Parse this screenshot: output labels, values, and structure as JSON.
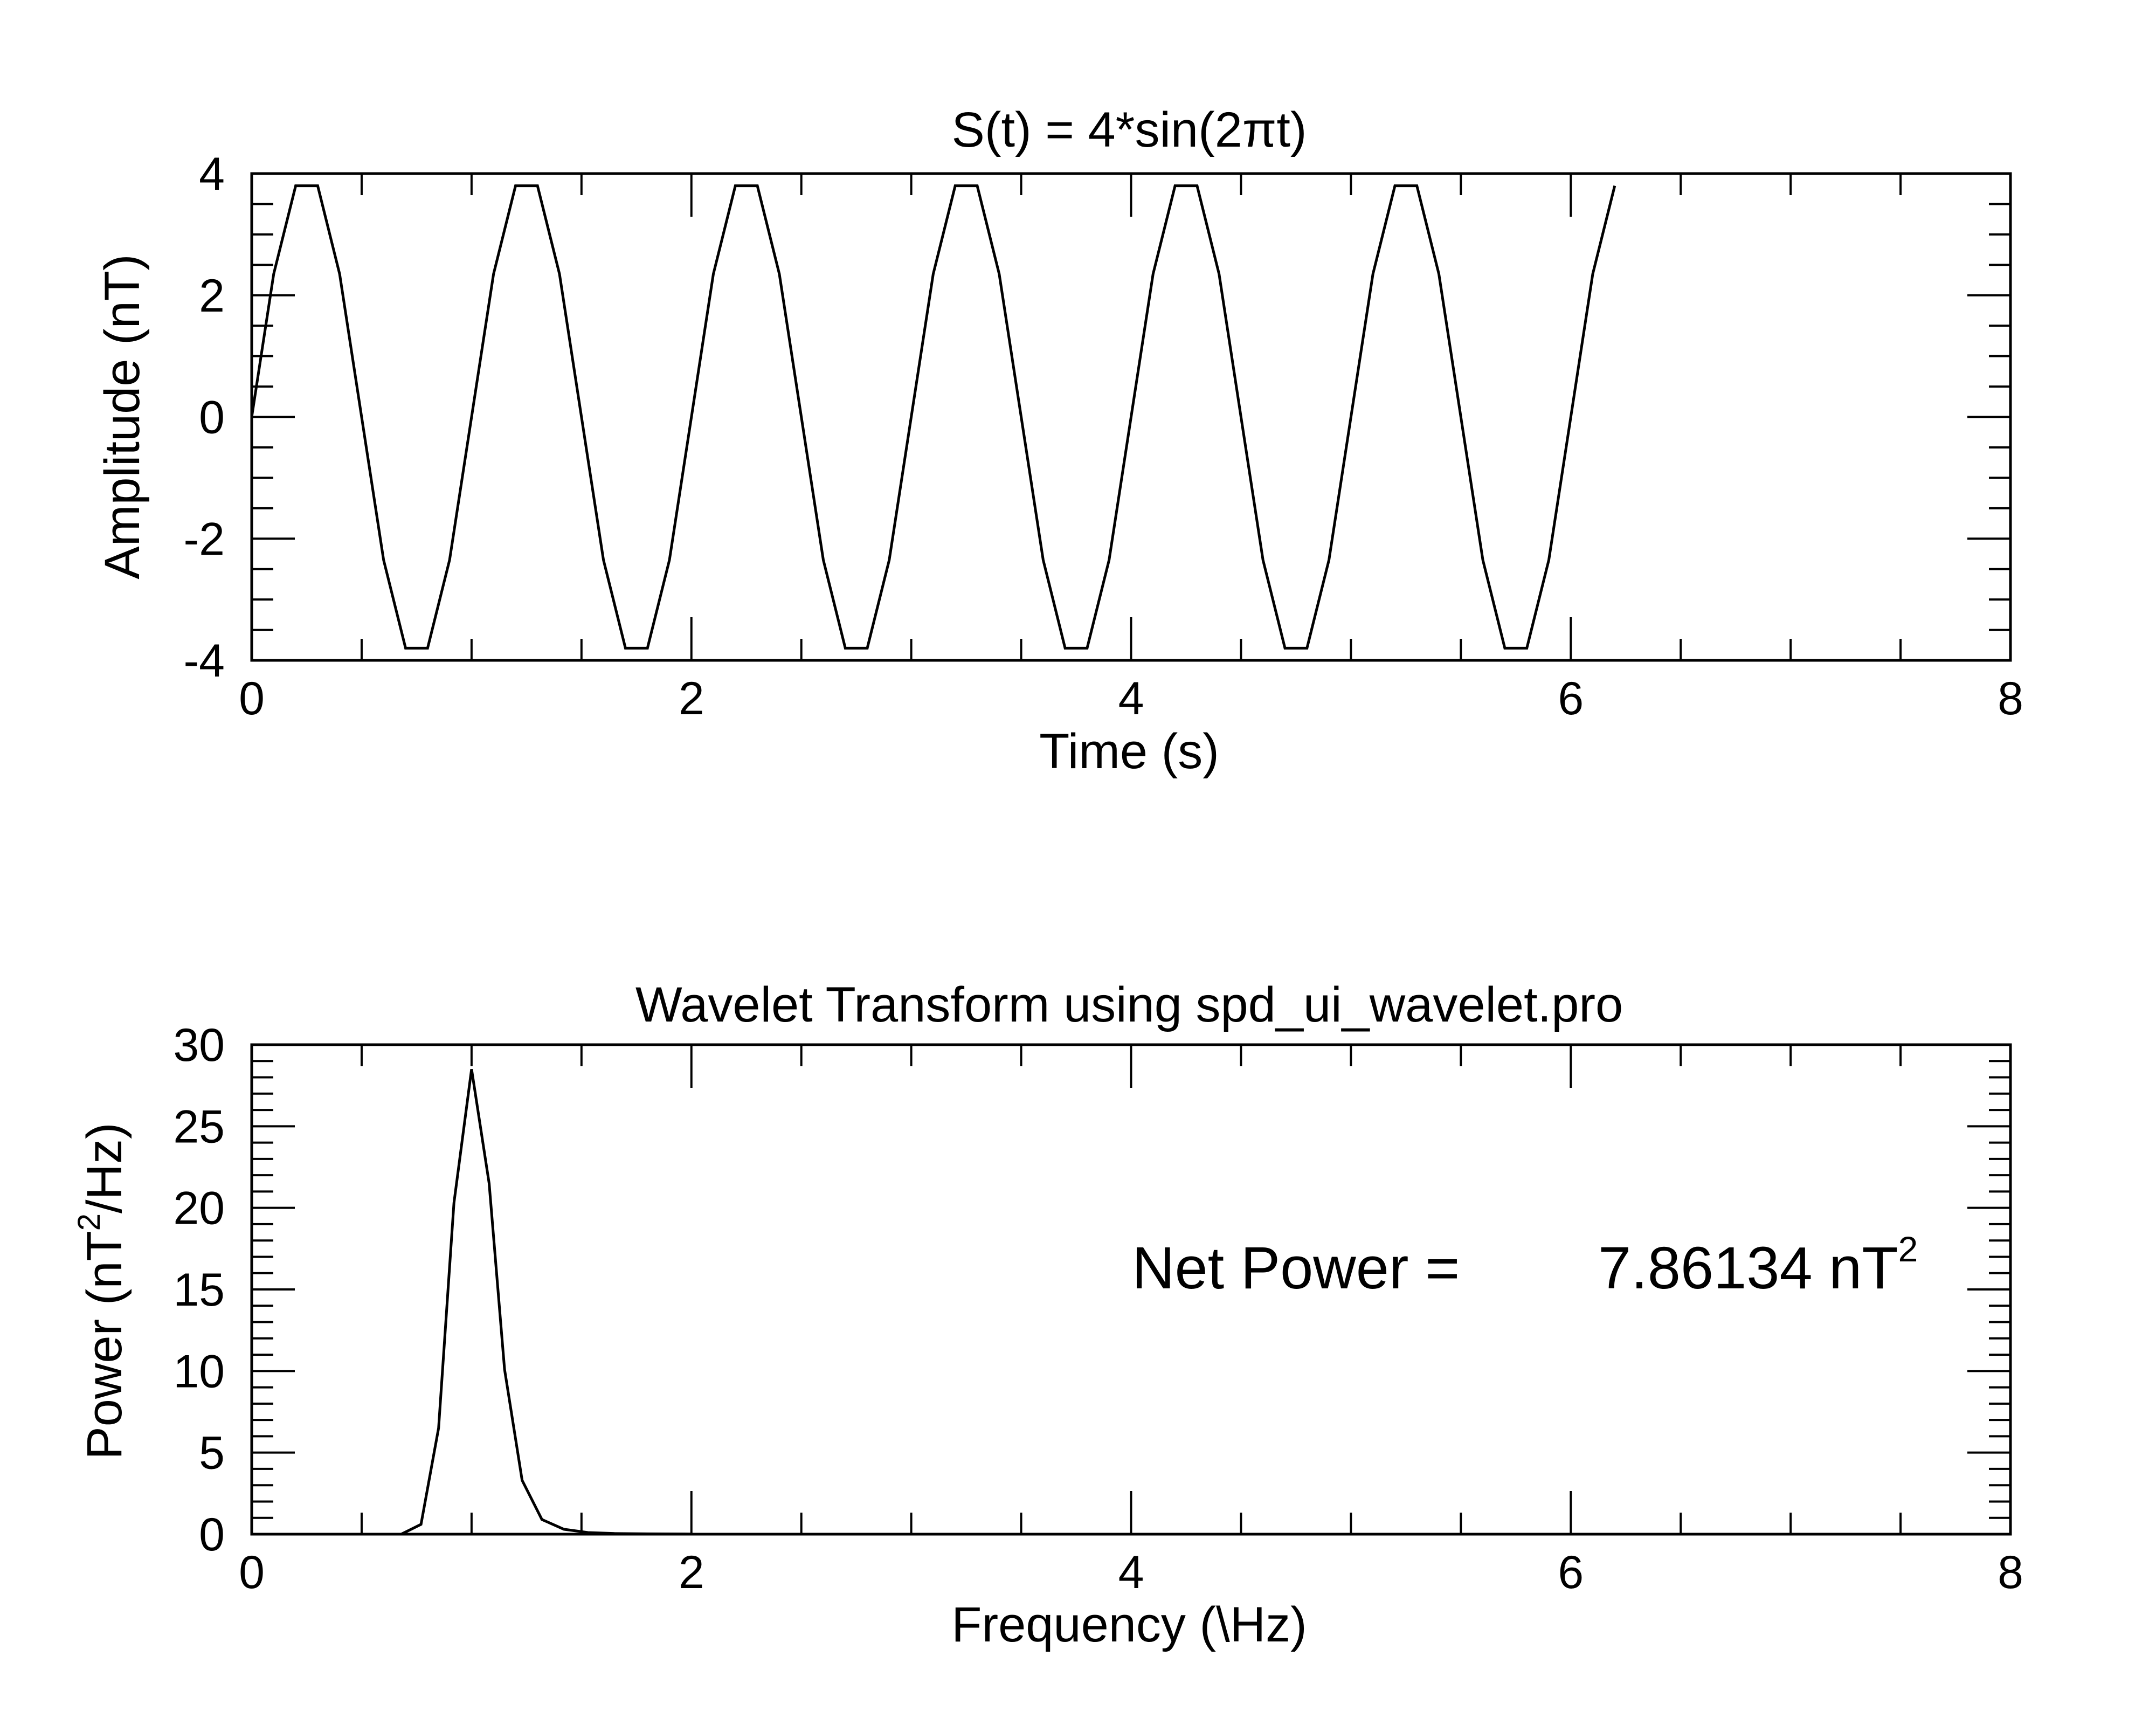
{
  "chart_data": [
    {
      "type": "line",
      "title": "S(t) = 4*sin(2πt)",
      "xlabel": "Time (s)",
      "ylabel": "Amplitude (nT)",
      "xlim": [
        0,
        8
      ],
      "ylim": [
        -4,
        4
      ],
      "x_ticks": [
        "0",
        "2",
        "4",
        "6",
        "8"
      ],
      "y_ticks": [
        "-4",
        "-2",
        "0",
        "2",
        "4"
      ],
      "grid": false,
      "series": [
        {
          "amplitude": 4,
          "frequency_hz": 1,
          "sample_step_s": 0.1,
          "x": [
            0,
            0.1,
            0.2,
            0.3,
            0.4,
            0.5,
            0.6,
            0.7,
            0.8,
            0.9,
            1.0,
            1.1,
            1.2,
            1.3,
            1.4,
            1.5,
            1.6,
            1.7,
            1.8,
            1.9,
            2.0,
            2.1,
            2.2,
            2.3,
            2.4,
            2.5,
            2.6,
            2.7,
            2.8,
            2.9,
            3.0,
            3.1,
            3.2,
            3.3,
            3.4,
            3.5,
            3.6,
            3.7,
            3.8,
            3.9,
            4.0,
            4.1,
            4.2,
            4.3,
            4.4,
            4.5,
            4.6,
            4.7,
            4.8,
            4.9,
            5.0,
            5.1,
            5.2,
            5.3,
            5.4,
            5.5,
            5.6,
            5.7,
            5.8,
            5.9,
            6.0,
            6.1,
            6.2
          ],
          "y": [
            0,
            2.35,
            3.8,
            3.8,
            2.35,
            0,
            -2.35,
            -3.8,
            -3.8,
            -2.35,
            0,
            2.35,
            3.8,
            3.8,
            2.35,
            0,
            -2.35,
            -3.8,
            -3.8,
            -2.35,
            0,
            2.35,
            3.8,
            3.8,
            2.35,
            0,
            -2.35,
            -3.8,
            -3.8,
            -2.35,
            0,
            2.35,
            3.8,
            3.8,
            2.35,
            0,
            -2.35,
            -3.8,
            -3.8,
            -2.35,
            0,
            2.35,
            3.8,
            3.8,
            2.35,
            0,
            -2.35,
            -3.8,
            -3.8,
            -2.35,
            0,
            2.35,
            3.8,
            3.8,
            2.35,
            0,
            -2.35,
            -3.8,
            -3.8,
            -2.35,
            0,
            2.35,
            3.8
          ]
        }
      ]
    },
    {
      "type": "line",
      "title": "Wavelet Transform using spd_ui_wavelet.pro",
      "xlabel": "Frequency (\\Hz)",
      "ylabel_main": "Power (nT",
      "ylabel_sup": "2",
      "ylabel_tail": "/Hz)",
      "xlim": [
        0,
        8
      ],
      "ylim": [
        0,
        30
      ],
      "x_ticks": [
        "0",
        "2",
        "4",
        "6",
        "8"
      ],
      "y_ticks": [
        "0",
        "5",
        "10",
        "15",
        "20",
        "25",
        "30"
      ],
      "grid": false,
      "series": [
        {
          "x": [
            0.68,
            0.77,
            0.85,
            0.92,
            1.0,
            1.08,
            1.15,
            1.23,
            1.32,
            1.42,
            1.53,
            1.65,
            1.8,
            2.0
          ],
          "y": [
            0,
            0.6,
            6.5,
            20.3,
            28.5,
            21.5,
            10.1,
            3.3,
            0.9,
            0.3,
            0.1,
            0.04,
            0.02,
            0.01
          ]
        }
      ],
      "annotation": {
        "label": "Net Power =",
        "value": "7.86134 nT",
        "value_sup": "2"
      }
    }
  ]
}
